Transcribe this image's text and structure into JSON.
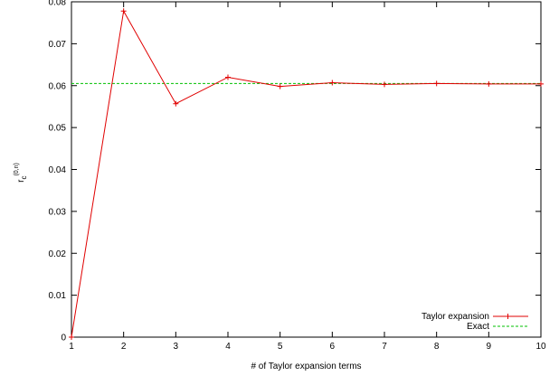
{
  "chart_data": {
    "type": "line",
    "xlabel": "# of Taylor expansion terms",
    "ylabel_main": "r",
    "ylabel_sub": "c",
    "ylabel_sup": "(0,n)",
    "xlim": [
      1,
      10
    ],
    "ylim": [
      0,
      0.08
    ],
    "x_ticks": [
      "1",
      "2",
      "3",
      "4",
      "5",
      "6",
      "7",
      "8",
      "9",
      "10"
    ],
    "y_ticks": [
      "0",
      "0.01",
      "0.02",
      "0.03",
      "0.04",
      "0.05",
      "0.06",
      "0.07",
      "0.08"
    ],
    "grid": false,
    "legend_position": "bottom-right",
    "series": [
      {
        "name": "Taylor expansion",
        "color": "#e00000",
        "marker": "plus",
        "x": [
          1,
          2,
          3,
          4,
          5,
          6,
          7,
          8,
          9,
          10
        ],
        "y": [
          0.0,
          0.0778,
          0.0557,
          0.062,
          0.0598,
          0.0607,
          0.0603,
          0.0605,
          0.0604,
          0.0604
        ]
      },
      {
        "name": "Exact",
        "color": "#00c000",
        "style": "dashed",
        "constant": 0.0605
      }
    ]
  }
}
